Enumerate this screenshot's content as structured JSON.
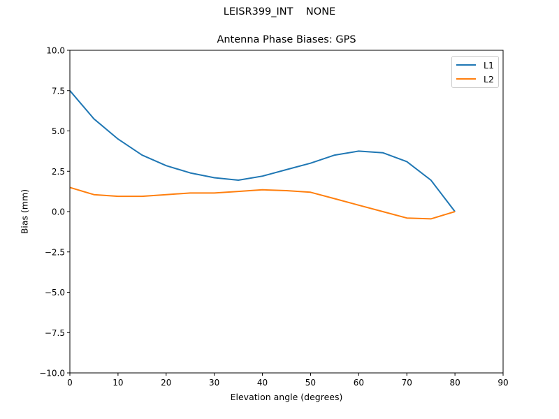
{
  "header": {
    "suptitle": "LEISR399_INT    NONE",
    "title": "Antenna Phase Biases: GPS"
  },
  "axes": {
    "xlabel": "Elevation angle (degrees)",
    "ylabel": "Bias (mm)"
  },
  "legend": {
    "items": [
      {
        "label": "L1",
        "color": "#1f77b4"
      },
      {
        "label": "L2",
        "color": "#ff7f0e"
      }
    ]
  },
  "chart_data": {
    "type": "line",
    "title": "Antenna Phase Biases: GPS",
    "suptitle": "LEISR399_INT    NONE",
    "xlabel": "Elevation angle (degrees)",
    "ylabel": "Bias (mm)",
    "xlim": [
      0,
      90
    ],
    "ylim": [
      -10,
      10
    ],
    "xticks": [
      0,
      10,
      20,
      30,
      40,
      50,
      60,
      70,
      80,
      90
    ],
    "yticks": [
      -10.0,
      -7.5,
      -5.0,
      -2.5,
      0.0,
      2.5,
      5.0,
      7.5,
      10.0
    ],
    "ytick_labels": [
      "−10.0",
      "−7.5",
      "−5.0",
      "−2.5",
      "0.0",
      "2.5",
      "5.0",
      "7.5",
      "10.0"
    ],
    "grid": false,
    "legend_position": "upper right",
    "x": [
      0,
      5,
      10,
      15,
      20,
      25,
      30,
      35,
      40,
      45,
      50,
      55,
      60,
      65,
      70,
      75,
      80
    ],
    "series": [
      {
        "name": "L1",
        "color": "#1f77b4",
        "values": [
          7.5,
          5.75,
          4.5,
          3.5,
          2.85,
          2.4,
          2.1,
          1.95,
          2.2,
          2.6,
          3.0,
          3.5,
          3.75,
          3.65,
          3.1,
          1.95,
          0.0
        ]
      },
      {
        "name": "L2",
        "color": "#ff7f0e",
        "values": [
          1.5,
          1.05,
          0.95,
          0.95,
          1.05,
          1.15,
          1.15,
          1.25,
          1.35,
          1.3,
          1.2,
          0.8,
          0.4,
          0.0,
          -0.4,
          -0.45,
          0.0
        ]
      }
    ]
  }
}
